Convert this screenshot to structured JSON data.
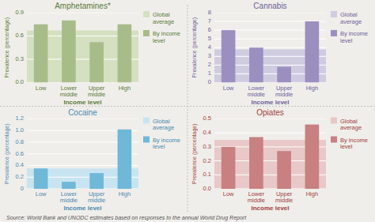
{
  "chart_data": [
    {
      "type": "bar",
      "title": "Amphetamines*",
      "color": "#5a7a3a",
      "x_label": "Income level",
      "y_label": "Prevalence (percentage)",
      "categories": [
        "Low",
        "Lower\nmiddle",
        "Upper\nmiddle",
        "High"
      ],
      "series": [
        {
          "name": "Global\naverage",
          "type": "band",
          "color": "#d4e0c0",
          "value": 0.67
        },
        {
          "name": "By income\nlevel",
          "type": "bar",
          "color": "#a8bc8a",
          "values": [
            0.75,
            0.8,
            0.52,
            0.75
          ]
        }
      ],
      "ylim": [
        0,
        0.9
      ],
      "yticks": [
        {
          "value": 0,
          "label": "0.0"
        },
        0.3,
        0.6,
        0.9
      ],
      "grid": true,
      "legend": "right"
    },
    {
      "type": "bar",
      "title": "Cannabis",
      "color": "#6b609a",
      "x_label": "Income level",
      "y_label": "Prevalence (percentage)",
      "categories": [
        "Low",
        "Lower\nmiddle",
        "Upper\nmiddle",
        "High"
      ],
      "series": [
        {
          "name": "Global\naverage",
          "type": "band",
          "color": "#d0cce0",
          "value": 3.8
        },
        {
          "name": "By income\nlevel",
          "type": "bar",
          "color": "#9b8fc0",
          "values": [
            6.0,
            4.0,
            1.8,
            7.0
          ]
        }
      ],
      "ylim": [
        0,
        8
      ],
      "yticks": [
        0,
        1,
        2,
        3,
        4,
        5,
        6,
        7,
        8
      ],
      "grid": true,
      "legend": "right"
    },
    {
      "type": "bar",
      "title": "Cocaine",
      "color": "#4a8ab0",
      "x_label": "Income level",
      "y_label": "Prevalence (percentage)",
      "categories": [
        "Low",
        "Lower\nmiddle",
        "Upper\nmiddle",
        "High"
      ],
      "series": [
        {
          "name": "Global\naverage",
          "type": "band",
          "color": "#c8e4f0",
          "value": 0.35
        },
        {
          "name": "By income\nlevel",
          "type": "bar",
          "color": "#70b8d8",
          "values": [
            0.35,
            0.12,
            0.27,
            1.02
          ]
        }
      ],
      "ylim": [
        0,
        1.2
      ],
      "yticks": [
        0,
        0.2,
        0.4,
        0.6,
        0.8,
        {
          "value": 1,
          "label": "1.0"
        },
        1.2
      ],
      "grid": true,
      "legend": "right"
    },
    {
      "type": "bar",
      "title": "Opiates",
      "color": "#a04040",
      "x_label": "Income level",
      "y_label": "Prevalence (percentage)",
      "categories": [
        "Low",
        "Lower\nmiddle",
        "Upper\nmiddle",
        "High"
      ],
      "series": [
        {
          "name": "Global\naverage",
          "type": "band",
          "color": "#e8c8c8",
          "value": 0.35
        },
        {
          "name": "By income\nlevel",
          "type": "bar",
          "color": "#c88080",
          "values": [
            0.3,
            0.37,
            0.27,
            0.46
          ]
        }
      ],
      "ylim": [
        0,
        0.5
      ],
      "yticks": [
        {
          "value": 0,
          "label": "0.0"
        },
        0.1,
        0.2,
        0.3,
        0.4,
        0.5
      ],
      "grid": true,
      "legend": "right"
    }
  ],
  "source": "Source: World Bank and UNODC estimates based on responses to the annual  World Drug Report"
}
